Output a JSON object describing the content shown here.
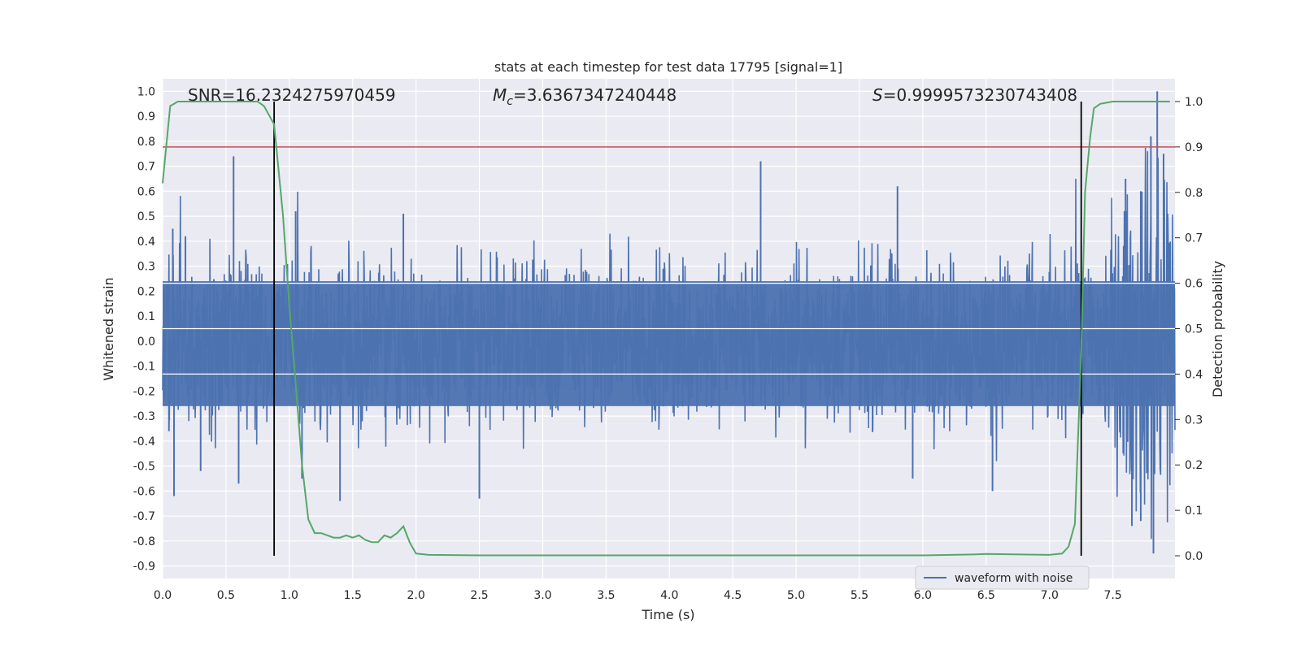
{
  "chart_data": {
    "type": "line",
    "title": "stats at each timestep for test data 17795 [signal=1]",
    "xlabel": "Time (s)",
    "ylabel": "Whitened strain",
    "y2label": "Detection probability",
    "xlim": [
      0.0,
      7.99
    ],
    "ylim": [
      -0.95,
      1.05
    ],
    "y2lim": [
      -0.05,
      1.05
    ],
    "xticks": [
      "0.0",
      "0.5",
      "1.0",
      "1.5",
      "2.0",
      "2.5",
      "3.0",
      "3.5",
      "4.0",
      "4.5",
      "5.0",
      "5.5",
      "6.0",
      "6.5",
      "7.0",
      "7.5"
    ],
    "yticks": [
      "1.0",
      "0.9",
      "0.8",
      "0.7",
      "0.6",
      "0.5",
      "0.4",
      "0.3",
      "0.2",
      "0.1",
      "0.0",
      "-0.1",
      "-0.2",
      "-0.3",
      "-0.4",
      "-0.5",
      "-0.6",
      "-0.7",
      "-0.8",
      "-0.9"
    ],
    "y2ticks": [
      "1.0",
      "0.9",
      "0.8",
      "0.7",
      "0.6",
      "0.5",
      "0.4",
      "0.3",
      "0.2",
      "0.1",
      "0.0"
    ],
    "grid": true,
    "legend": {
      "entries": [
        "waveform with noise"
      ],
      "placement": "lower-right"
    },
    "annotations": {
      "snr": "SNR=16.2324275970459",
      "mc_symbol": "M",
      "mc_sub": "c",
      "mc_value": "=3.6367347240448",
      "s_symbol": "S",
      "s_value": "=0.9999573230743408"
    },
    "threshold_line": {
      "axis": "right",
      "value": 0.9,
      "color": "#c44e52"
    },
    "vertical_lines": [
      0.88,
      7.25
    ],
    "waveform": {
      "name": "waveform with noise",
      "color": "#4c72b0",
      "typical_amplitude": 0.3,
      "spikes": [
        [
          0.05,
          -0.36
        ],
        [
          0.08,
          0.45
        ],
        [
          0.09,
          -0.62
        ],
        [
          0.18,
          0.42
        ],
        [
          0.3,
          -0.52
        ],
        [
          0.56,
          0.74
        ],
        [
          0.6,
          -0.57
        ],
        [
          1.05,
          0.52
        ],
        [
          1.1,
          -0.55
        ],
        [
          1.4,
          -0.64
        ],
        [
          1.9,
          0.51
        ],
        [
          2.5,
          -0.63
        ],
        [
          4.72,
          0.72
        ],
        [
          5.92,
          -0.55
        ],
        [
          5.8,
          0.62
        ],
        [
          6.55,
          -0.6
        ],
        [
          7.6,
          0.65
        ],
        [
          7.72,
          0.6
        ],
        [
          7.8,
          0.82
        ],
        [
          7.82,
          -0.85
        ],
        [
          7.85,
          1.0
        ],
        [
          7.72,
          -0.72
        ],
        [
          7.65,
          -0.74
        ],
        [
          7.9,
          0.75
        ]
      ]
    },
    "probability": {
      "name": "detection probability",
      "color": "#55a868",
      "x": [
        0.0,
        0.06,
        0.12,
        0.2,
        0.4,
        0.6,
        0.75,
        0.8,
        0.88,
        0.95,
        1.0,
        1.05,
        1.1,
        1.15,
        1.2,
        1.25,
        1.3,
        1.35,
        1.4,
        1.45,
        1.5,
        1.55,
        1.6,
        1.65,
        1.7,
        1.75,
        1.8,
        1.85,
        1.9,
        1.95,
        2.0,
        2.1,
        2.5,
        3.0,
        4.0,
        5.0,
        6.0,
        6.4,
        6.5,
        7.0,
        7.1,
        7.15,
        7.2,
        7.25,
        7.28,
        7.32,
        7.35,
        7.4,
        7.5,
        7.6,
        7.8,
        7.95
      ],
      "y": [
        0.82,
        0.99,
        1.0,
        1.0,
        1.0,
        1.0,
        1.0,
        0.99,
        0.95,
        0.75,
        0.55,
        0.38,
        0.2,
        0.08,
        0.05,
        0.05,
        0.045,
        0.04,
        0.04,
        0.045,
        0.04,
        0.045,
        0.035,
        0.03,
        0.03,
        0.045,
        0.04,
        0.05,
        0.065,
        0.03,
        0.005,
        0.002,
        0.001,
        0.001,
        0.001,
        0.001,
        0.001,
        0.003,
        0.004,
        0.002,
        0.005,
        0.02,
        0.07,
        0.45,
        0.8,
        0.92,
        0.985,
        0.995,
        1.0,
        1.0,
        1.0,
        1.0
      ]
    }
  }
}
